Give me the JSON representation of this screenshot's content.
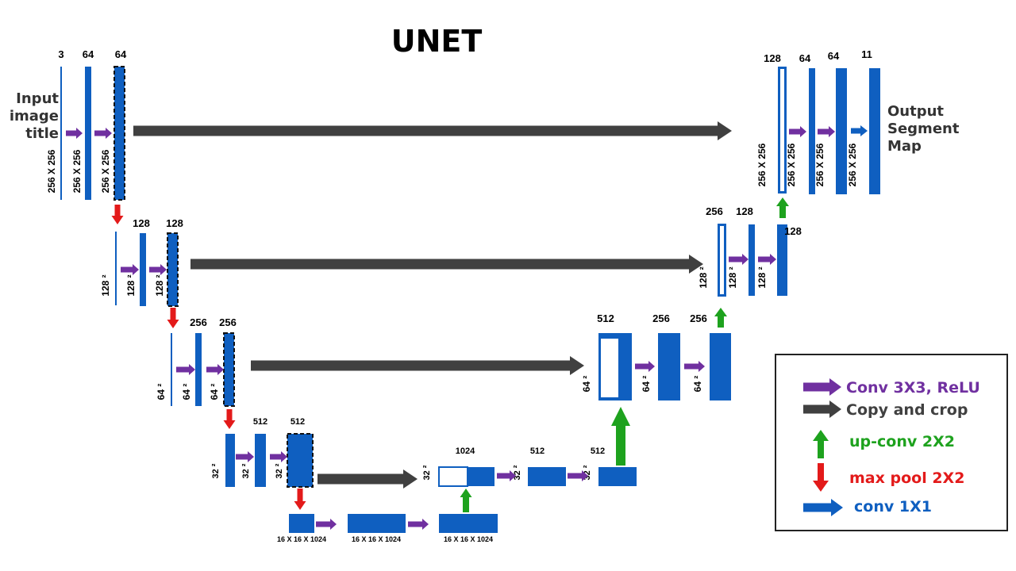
{
  "title": "UNET",
  "input_label": [
    "Input",
    "image",
    "title"
  ],
  "output_label": [
    "Output",
    "Segment",
    "Map"
  ],
  "channel_labels": {
    "enc1": [
      "3",
      "64",
      "64"
    ],
    "enc2": [
      "128",
      "128"
    ],
    "enc3": [
      "256",
      "256"
    ],
    "enc4": [
      "512",
      "512"
    ],
    "dec4": [
      "1024",
      "512",
      "512"
    ],
    "dec3": [
      "512",
      "256",
      "256"
    ],
    "dec2": [
      "256",
      "128",
      "128"
    ],
    "dec1": [
      "128",
      "64",
      "64",
      "11"
    ]
  },
  "size_labels": {
    "level1": "256 X 256",
    "level2": "128 ²",
    "level3": "64 ²",
    "level4": "32 ²",
    "bottleneck": "16 X 16 X 1024"
  },
  "legend": {
    "items": [
      {
        "label": "Conv 3X3, ReLU",
        "color": "#7030a0",
        "icon": "right-arrow-icon"
      },
      {
        "label": "Copy and crop",
        "color": "#404040",
        "icon": "right-arrow-icon"
      },
      {
        "label": "up-conv 2X2",
        "color": "#1ea21e",
        "icon": "up-arrow-icon"
      },
      {
        "label": "max pool 2X2",
        "color": "#e31a1a",
        "icon": "down-arrow-icon"
      },
      {
        "label": "conv 1X1",
        "color": "#0f5fc0",
        "icon": "right-arrow-icon"
      }
    ]
  },
  "colors": {
    "block": "#0f5fc0",
    "conv": "#7030a0",
    "copy": "#404040",
    "upconv": "#1ea21e",
    "maxpool": "#e31a1a",
    "conv1x1": "#0f5fc0"
  }
}
